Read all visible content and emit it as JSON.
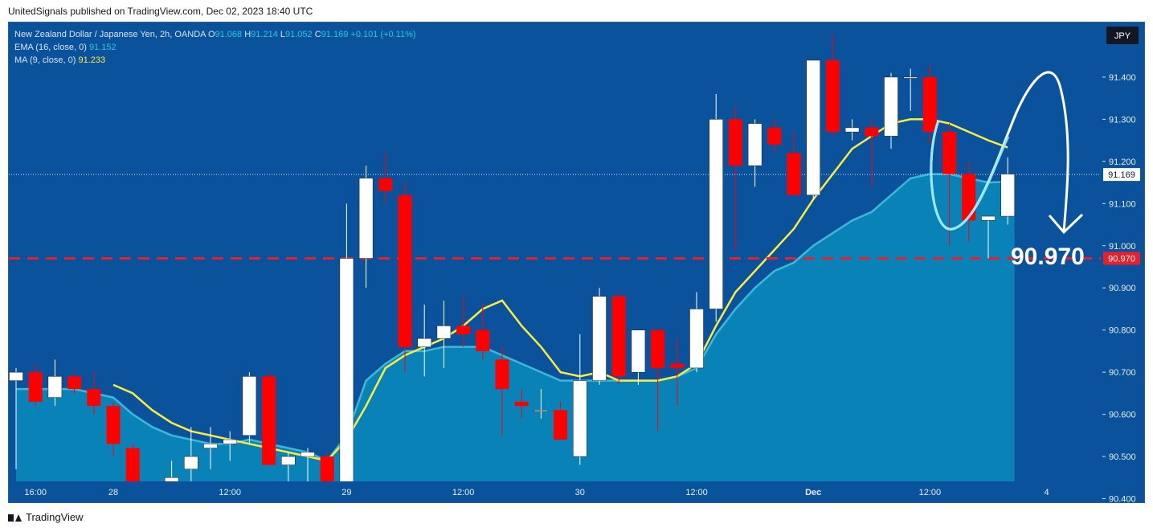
{
  "caption": "UnitedSignals published on TradingView.com, Dec 02, 2023 18:40 UTC",
  "footer_brand": "TradingView",
  "legend": {
    "symbol": "New Zealand Dollar / Japanese Yen, 2h, OANDA",
    "o_label": "O",
    "o_value": "91.068",
    "h_label": "H",
    "h_value": "91.214",
    "l_label": "L",
    "l_value": "91.052",
    "c_label": "C",
    "c_value": "91.169",
    "change": "+0.101 (+0.11%)",
    "ema_label": "EMA (16, close, 0)",
    "ema_value": "91.152",
    "ma_label": "MA (9, close, 0)",
    "ma_value": "91.233"
  },
  "colors": {
    "background": "#0a539c",
    "bull": "#ffffff",
    "bear": "#ff0000",
    "ema_fill": "#0a86b8",
    "ema_line": "#3fb8d8",
    "ma_line": "#ffeb3b",
    "target_line": "#e8202a",
    "annotation": "#ffffff"
  },
  "chart_data": {
    "type": "candlestick",
    "currency": "JPY",
    "yrange": [
      90.38,
      91.52
    ],
    "y_ticks": [
      "91.400",
      "91.300",
      "91.200",
      "91.100",
      "91.000",
      "90.900",
      "90.800",
      "90.700",
      "90.600",
      "90.500",
      "90.400"
    ],
    "x_ticks": [
      {
        "label": "16:00",
        "i": 1
      },
      {
        "label": "28",
        "i": 5
      },
      {
        "label": "12:00",
        "i": 11
      },
      {
        "label": "29",
        "i": 17
      },
      {
        "label": "12:00",
        "i": 23
      },
      {
        "label": "30",
        "i": 29
      },
      {
        "label": "12:00",
        "i": 35
      },
      {
        "label": "Dec",
        "i": 41
      },
      {
        "label": "12:00",
        "i": 47
      },
      {
        "label": "4",
        "i": 53
      }
    ],
    "last_price": "91.169",
    "target_price": "90.970",
    "target_label": "90.970",
    "candles": [
      {
        "o": 90.68,
        "h": 90.71,
        "l": 90.47,
        "c": 90.7
      },
      {
        "o": 90.7,
        "h": 90.72,
        "l": 90.62,
        "c": 90.63
      },
      {
        "o": 90.64,
        "h": 90.73,
        "l": 90.62,
        "c": 90.69
      },
      {
        "o": 90.69,
        "h": 90.7,
        "l": 90.65,
        "c": 90.66
      },
      {
        "o": 90.66,
        "h": 90.7,
        "l": 90.6,
        "c": 90.62
      },
      {
        "o": 90.62,
        "h": 90.63,
        "l": 90.5,
        "c": 90.53
      },
      {
        "o": 90.52,
        "h": 90.53,
        "l": 90.42,
        "c": 90.42
      },
      {
        "o": 90.42,
        "h": 90.43,
        "l": 90.41,
        "c": 90.42
      },
      {
        "o": 90.42,
        "h": 90.49,
        "l": 90.38,
        "c": 90.45
      },
      {
        "o": 90.47,
        "h": 90.57,
        "l": 90.44,
        "c": 90.5
      },
      {
        "o": 90.52,
        "h": 90.57,
        "l": 90.47,
        "c": 90.53
      },
      {
        "o": 90.53,
        "h": 90.56,
        "l": 90.49,
        "c": 90.54
      },
      {
        "o": 90.55,
        "h": 90.7,
        "l": 90.53,
        "c": 90.69
      },
      {
        "o": 90.69,
        "h": 90.7,
        "l": 90.48,
        "c": 90.48
      },
      {
        "o": 90.48,
        "h": 90.51,
        "l": 90.38,
        "c": 90.5
      },
      {
        "o": 90.5,
        "h": 90.52,
        "l": 90.38,
        "c": 90.51
      },
      {
        "o": 90.5,
        "h": 90.51,
        "l": 90.38,
        "c": 90.38
      },
      {
        "o": 90.38,
        "h": 91.1,
        "l": 90.38,
        "c": 90.97
      },
      {
        "o": 90.97,
        "h": 91.19,
        "l": 90.9,
        "c": 91.16
      },
      {
        "o": 91.16,
        "h": 91.22,
        "l": 91.1,
        "c": 91.13
      },
      {
        "o": 91.12,
        "h": 91.15,
        "l": 90.7,
        "c": 90.76
      },
      {
        "o": 90.76,
        "h": 90.86,
        "l": 90.69,
        "c": 90.78
      },
      {
        "o": 90.78,
        "h": 90.87,
        "l": 90.71,
        "c": 90.81
      },
      {
        "o": 90.81,
        "h": 90.88,
        "l": 90.76,
        "c": 90.79
      },
      {
        "o": 90.8,
        "h": 90.86,
        "l": 90.73,
        "c": 90.75
      },
      {
        "o": 90.73,
        "h": 90.76,
        "l": 90.55,
        "c": 90.66
      },
      {
        "o": 90.63,
        "h": 90.66,
        "l": 90.59,
        "c": 90.62
      },
      {
        "o": 90.61,
        "h": 90.66,
        "l": 90.59,
        "c": 90.61
      },
      {
        "o": 90.61,
        "h": 90.63,
        "l": 90.55,
        "c": 90.54
      },
      {
        "o": 90.5,
        "h": 90.79,
        "l": 90.48,
        "c": 90.68
      },
      {
        "o": 90.68,
        "h": 90.9,
        "l": 90.67,
        "c": 90.88
      },
      {
        "o": 90.88,
        "h": 90.89,
        "l": 90.67,
        "c": 90.69
      },
      {
        "o": 90.7,
        "h": 90.8,
        "l": 90.67,
        "c": 90.8
      },
      {
        "o": 90.8,
        "h": 90.8,
        "l": 90.56,
        "c": 90.71
      },
      {
        "o": 90.72,
        "h": 90.78,
        "l": 90.62,
        "c": 90.71
      },
      {
        "o": 90.71,
        "h": 90.89,
        "l": 90.7,
        "c": 90.85
      },
      {
        "o": 90.85,
        "h": 91.36,
        "l": 90.82,
        "c": 91.3
      },
      {
        "o": 91.3,
        "h": 91.33,
        "l": 90.99,
        "c": 91.19
      },
      {
        "o": 91.19,
        "h": 91.3,
        "l": 91.14,
        "c": 91.29
      },
      {
        "o": 91.28,
        "h": 91.3,
        "l": 91.22,
        "c": 91.24
      },
      {
        "o": 91.22,
        "h": 91.27,
        "l": 91.12,
        "c": 91.12
      },
      {
        "o": 91.12,
        "h": 91.44,
        "l": 91.11,
        "c": 91.44
      },
      {
        "o": 91.44,
        "h": 91.5,
        "l": 91.26,
        "c": 91.27
      },
      {
        "o": 91.27,
        "h": 91.3,
        "l": 91.25,
        "c": 91.28
      },
      {
        "o": 91.28,
        "h": 91.3,
        "l": 91.14,
        "c": 91.26
      },
      {
        "o": 91.26,
        "h": 91.41,
        "l": 91.23,
        "c": 91.4
      },
      {
        "o": 91.4,
        "h": 91.42,
        "l": 91.32,
        "c": 91.4
      },
      {
        "o": 91.4,
        "h": 91.43,
        "l": 91.24,
        "c": 91.27
      },
      {
        "o": 91.27,
        "h": 91.29,
        "l": 91.0,
        "c": 91.17
      },
      {
        "o": 91.17,
        "h": 91.2,
        "l": 91.01,
        "c": 91.06
      },
      {
        "o": 91.06,
        "h": 91.07,
        "l": 90.97,
        "c": 91.07
      },
      {
        "o": 91.07,
        "h": 91.21,
        "l": 91.05,
        "c": 91.17
      }
    ],
    "ema": [
      90.66,
      90.66,
      90.66,
      90.66,
      90.65,
      90.64,
      90.6,
      90.57,
      90.55,
      90.54,
      90.53,
      90.53,
      90.54,
      90.53,
      90.52,
      90.51,
      90.49,
      90.55,
      90.68,
      90.72,
      90.75,
      90.75,
      90.76,
      90.76,
      90.76,
      90.74,
      90.72,
      90.7,
      90.68,
      90.68,
      90.68,
      90.68,
      90.68,
      90.68,
      90.69,
      90.71,
      90.79,
      90.85,
      90.9,
      90.94,
      90.96,
      91.0,
      91.03,
      91.06,
      91.08,
      91.12,
      91.16,
      91.17,
      91.17,
      91.16,
      91.15,
      91.152
    ],
    "ma": [
      null,
      null,
      null,
      null,
      null,
      90.67,
      90.65,
      90.61,
      90.58,
      90.56,
      90.55,
      90.54,
      90.53,
      90.52,
      90.51,
      90.5,
      90.49,
      90.54,
      90.62,
      90.71,
      90.74,
      90.76,
      90.78,
      90.81,
      90.85,
      90.87,
      90.81,
      90.76,
      90.7,
      90.69,
      90.7,
      90.68,
      90.68,
      90.68,
      90.69,
      90.72,
      90.81,
      90.89,
      90.94,
      90.99,
      91.04,
      91.11,
      91.17,
      91.23,
      91.26,
      91.29,
      91.3,
      91.3,
      91.29,
      91.27,
      91.25,
      91.233
    ]
  }
}
